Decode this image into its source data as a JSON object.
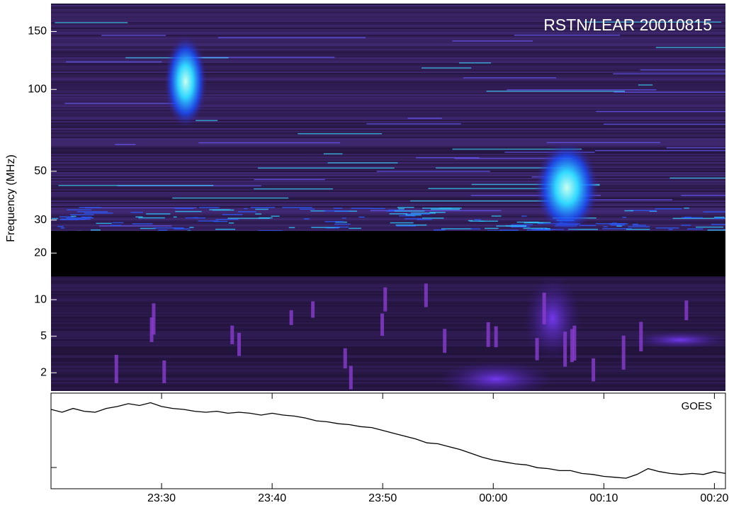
{
  "chart_data": [
    {
      "type": "spectrogram",
      "title": "RSTN/LEAR 20010815",
      "y_label": "Frequency (MHz)",
      "yscale": "power",
      "yscale_exponent": 0.35,
      "ylim": [
        1.1,
        179
      ],
      "yticks": [
        150,
        100,
        50,
        30,
        20,
        10,
        5,
        2
      ],
      "xlim": [
        20,
        81
      ]
    },
    {
      "type": "line",
      "annotation": "GOES",
      "color": "#000000",
      "xlim": [
        20,
        81
      ],
      "ylim": [
        0,
        1
      ],
      "xticks": [
        {
          "value": 30,
          "label": "23:30"
        },
        {
          "value": 40,
          "label": "23:40"
        },
        {
          "value": 50,
          "label": "23:50"
        },
        {
          "value": 60,
          "label": "00:00"
        },
        {
          "value": 70,
          "label": "00:10"
        },
        {
          "value": 80,
          "label": "00:20"
        }
      ],
      "x": [
        20,
        21,
        22,
        23,
        24,
        25,
        26,
        27,
        28,
        29,
        30,
        31,
        32,
        33,
        34,
        35,
        36,
        37,
        38,
        39,
        40,
        41,
        42,
        43,
        44,
        45,
        46,
        47,
        48,
        49,
        50,
        51,
        52,
        53,
        54,
        55,
        56,
        57,
        58,
        59,
        60,
        61,
        62,
        63,
        64,
        65,
        66,
        67,
        68,
        69,
        70,
        71,
        72,
        73,
        74,
        75,
        76,
        77,
        78,
        79,
        80,
        81
      ],
      "values": [
        0.83,
        0.8,
        0.84,
        0.81,
        0.8,
        0.84,
        0.86,
        0.89,
        0.87,
        0.9,
        0.86,
        0.84,
        0.83,
        0.81,
        0.8,
        0.81,
        0.79,
        0.8,
        0.79,
        0.77,
        0.79,
        0.77,
        0.76,
        0.74,
        0.71,
        0.7,
        0.68,
        0.67,
        0.65,
        0.64,
        0.61,
        0.58,
        0.55,
        0.52,
        0.48,
        0.47,
        0.44,
        0.41,
        0.37,
        0.33,
        0.3,
        0.28,
        0.26,
        0.25,
        0.22,
        0.21,
        0.19,
        0.19,
        0.16,
        0.15,
        0.13,
        0.12,
        0.11,
        0.15,
        0.21,
        0.18,
        0.16,
        0.15,
        0.16,
        0.15,
        0.18,
        0.16
      ]
    }
  ]
}
